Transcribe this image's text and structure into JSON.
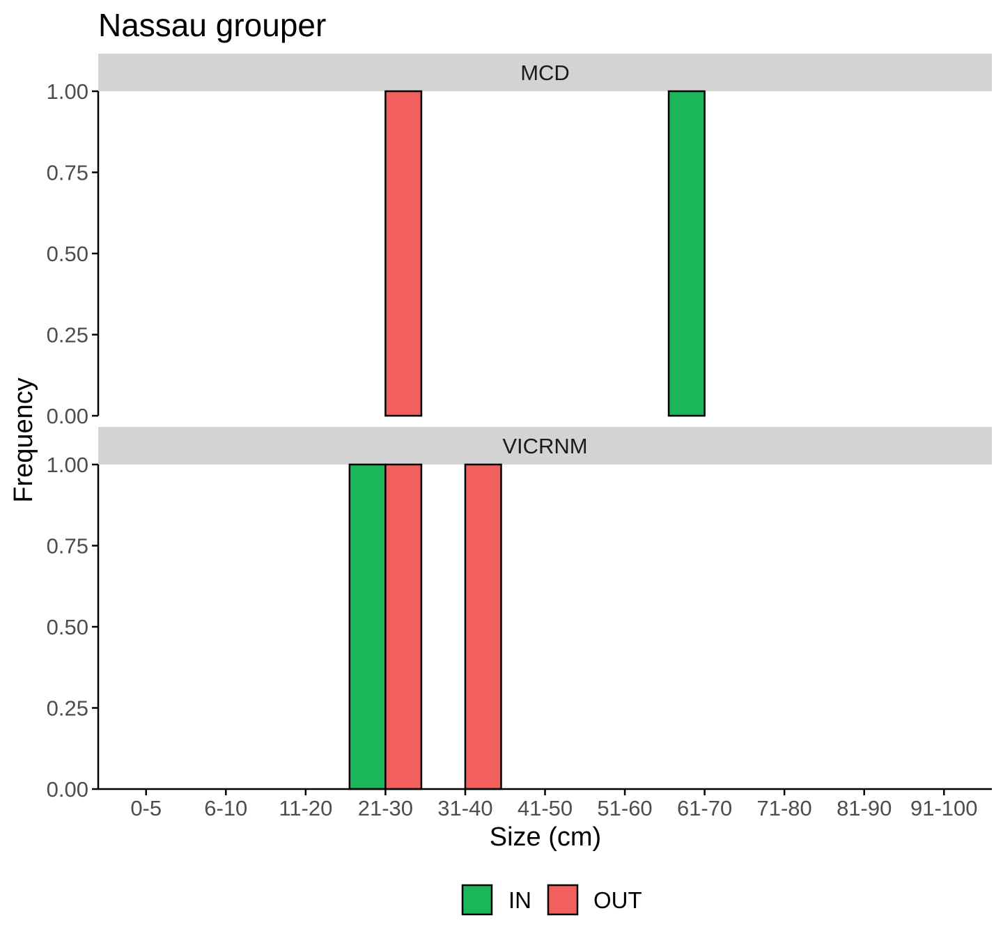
{
  "chart_data": {
    "type": "bar",
    "title": "Nassau grouper",
    "xlabel": "Size (cm)",
    "ylabel": "Frequency",
    "ylim": [
      0,
      1
    ],
    "yticks": [
      "0.00",
      "0.25",
      "0.50",
      "0.75",
      "1.00"
    ],
    "ytick_values": [
      0,
      0.25,
      0.5,
      0.75,
      1
    ],
    "categories": [
      "0-5",
      "6-10",
      "11-20",
      "21-30",
      "31-40",
      "41-50",
      "51-60",
      "61-70",
      "71-80",
      "81-90",
      "91-100"
    ],
    "grid": false,
    "legend_position": "bottom",
    "colors": {
      "IN": "#1bb65a",
      "OUT": "#f1605c",
      "strip": "#d3d3d3",
      "axis": "#000000",
      "tick_text": "#4d4d4d"
    },
    "legend": [
      {
        "label": "IN",
        "series": "IN"
      },
      {
        "label": "OUT",
        "series": "OUT"
      }
    ],
    "panels": [
      {
        "label": "MCD",
        "series": [
          {
            "name": "IN",
            "values": [
              0,
              0,
              0,
              0,
              0,
              0,
              0,
              1,
              0,
              0,
              0
            ]
          },
          {
            "name": "OUT",
            "values": [
              0,
              0,
              0,
              1,
              0,
              0,
              0,
              0,
              0,
              0,
              0
            ]
          }
        ]
      },
      {
        "label": "VICRNM",
        "series": [
          {
            "name": "IN",
            "values": [
              0,
              0,
              0,
              1,
              0,
              0,
              0,
              0,
              0,
              0,
              0
            ]
          },
          {
            "name": "OUT",
            "values": [
              0,
              0,
              0,
              1,
              1,
              0,
              0,
              0,
              0,
              0,
              0
            ]
          }
        ]
      }
    ]
  }
}
